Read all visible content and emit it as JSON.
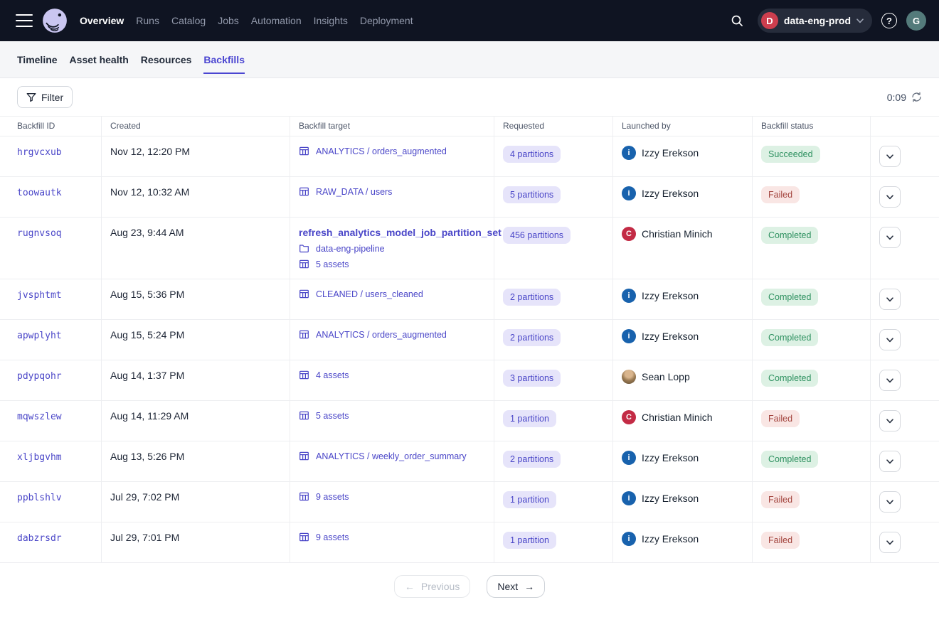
{
  "topnav": {
    "brand": "Dagster",
    "items": [
      {
        "label": "Overview",
        "active": true
      },
      {
        "label": "Runs",
        "active": false
      },
      {
        "label": "Catalog",
        "active": false
      },
      {
        "label": "Jobs",
        "active": false
      },
      {
        "label": "Automation",
        "active": false
      },
      {
        "label": "Insights",
        "active": false
      },
      {
        "label": "Deployment",
        "active": false
      }
    ],
    "deployment": {
      "initial": "D",
      "name": "data-eng-prod"
    },
    "help_glyph": "?",
    "avatar_initial": "G"
  },
  "tabs": [
    {
      "label": "Timeline",
      "active": false
    },
    {
      "label": "Asset health",
      "active": false
    },
    {
      "label": "Resources",
      "active": false
    },
    {
      "label": "Backfills",
      "active": true
    }
  ],
  "toolbar": {
    "filter_label": "Filter",
    "refresh_countdown": "0:09"
  },
  "table": {
    "columns": [
      "Backfill ID",
      "Created",
      "Backfill target",
      "Requested",
      "Launched by",
      "Backfill status",
      ""
    ],
    "rows": [
      {
        "id": "hrgvcxub",
        "created": "Nov 12, 12:20 PM",
        "target": [
          {
            "icon": "grid",
            "text": "ANALYTICS / orders_augmented",
            "bold": false
          }
        ],
        "requested": "4 partitions",
        "launched_by": {
          "name": "Izzy Erekson",
          "avatar": {
            "kind": "letter",
            "letter": "i",
            "color": "#1862ad"
          }
        },
        "status": {
          "label": "Succeeded",
          "kind": "success"
        }
      },
      {
        "id": "toowautk",
        "created": "Nov 12, 10:32 AM",
        "target": [
          {
            "icon": "grid",
            "text": "RAW_DATA / users",
            "bold": false
          }
        ],
        "requested": "5 partitions",
        "launched_by": {
          "name": "Izzy Erekson",
          "avatar": {
            "kind": "letter",
            "letter": "i",
            "color": "#1862ad"
          }
        },
        "status": {
          "label": "Failed",
          "kind": "failed"
        }
      },
      {
        "id": "rugnvsoq",
        "created": "Aug 23, 9:44 AM",
        "target": [
          {
            "icon": "",
            "text": "refresh_analytics_model_job_partition_set",
            "bold": true
          },
          {
            "icon": "folder",
            "text": "data-eng-pipeline",
            "bold": false
          },
          {
            "icon": "grid",
            "text": "5 assets",
            "bold": false
          }
        ],
        "requested": "456 partitions",
        "launched_by": {
          "name": "Christian Minich",
          "avatar": {
            "kind": "letter",
            "letter": "C",
            "color": "#c32b45"
          }
        },
        "status": {
          "label": "Completed",
          "kind": "success"
        }
      },
      {
        "id": "jvsphtmt",
        "created": "Aug 15, 5:36 PM",
        "target": [
          {
            "icon": "grid",
            "text": "CLEANED / users_cleaned",
            "bold": false
          }
        ],
        "requested": "2 partitions",
        "launched_by": {
          "name": "Izzy Erekson",
          "avatar": {
            "kind": "letter",
            "letter": "i",
            "color": "#1862ad"
          }
        },
        "status": {
          "label": "Completed",
          "kind": "success"
        }
      },
      {
        "id": "apwplyht",
        "created": "Aug 15, 5:24 PM",
        "target": [
          {
            "icon": "grid",
            "text": "ANALYTICS / orders_augmented",
            "bold": false
          }
        ],
        "requested": "2 partitions",
        "launched_by": {
          "name": "Izzy Erekson",
          "avatar": {
            "kind": "letter",
            "letter": "i",
            "color": "#1862ad"
          }
        },
        "status": {
          "label": "Completed",
          "kind": "success"
        }
      },
      {
        "id": "pdypqohr",
        "created": "Aug 14, 1:37 PM",
        "target": [
          {
            "icon": "grid",
            "text": "4 assets",
            "bold": false
          }
        ],
        "requested": "3 partitions",
        "launched_by": {
          "name": "Sean Lopp",
          "avatar": {
            "kind": "photo"
          }
        },
        "status": {
          "label": "Completed",
          "kind": "success"
        }
      },
      {
        "id": "mqwszlew",
        "created": "Aug 14, 11:29 AM",
        "target": [
          {
            "icon": "grid",
            "text": "5 assets",
            "bold": false
          }
        ],
        "requested": "1 partition",
        "launched_by": {
          "name": "Christian Minich",
          "avatar": {
            "kind": "letter",
            "letter": "C",
            "color": "#c32b45"
          }
        },
        "status": {
          "label": "Failed",
          "kind": "failed"
        }
      },
      {
        "id": "xljbgvhm",
        "created": "Aug 13, 5:26 PM",
        "target": [
          {
            "icon": "grid",
            "text": "ANALYTICS / weekly_order_summary",
            "bold": false
          }
        ],
        "requested": "2 partitions",
        "launched_by": {
          "name": "Izzy Erekson",
          "avatar": {
            "kind": "letter",
            "letter": "i",
            "color": "#1862ad"
          }
        },
        "status": {
          "label": "Completed",
          "kind": "success"
        }
      },
      {
        "id": "ppblshlv",
        "created": "Jul 29, 7:02 PM",
        "target": [
          {
            "icon": "grid",
            "text": "9 assets",
            "bold": false
          }
        ],
        "requested": "1 partition",
        "launched_by": {
          "name": "Izzy Erekson",
          "avatar": {
            "kind": "letter",
            "letter": "i",
            "color": "#1862ad"
          }
        },
        "status": {
          "label": "Failed",
          "kind": "failed"
        }
      },
      {
        "id": "dabzrsdr",
        "created": "Jul 29, 7:01 PM",
        "target": [
          {
            "icon": "grid",
            "text": "9 assets",
            "bold": false
          }
        ],
        "requested": "1 partition",
        "launched_by": {
          "name": "Izzy Erekson",
          "avatar": {
            "kind": "letter",
            "letter": "i",
            "color": "#1862ad"
          }
        },
        "status": {
          "label": "Failed",
          "kind": "failed"
        }
      }
    ]
  },
  "pagination": {
    "previous_label": "Previous",
    "next_label": "Next"
  },
  "icons": {
    "arrow_left": "←",
    "arrow_right": "→"
  },
  "colors": {
    "nav_bg": "#0f1422",
    "accent_indigo": "#4a45d1",
    "link_indigo": "#4a46c8",
    "partition_badge_bg": "#e6e4fa",
    "success_badge_bg": "#ddf1e4",
    "success_badge_text": "#2e9160",
    "failed_badge_bg": "#f9e6e4",
    "failed_badge_text": "#a3453e",
    "deployment_badge": "#cd3e4e",
    "avatar_izzy": "#1862ad",
    "avatar_christian": "#c32b45",
    "avatar_user": "#547b7b"
  }
}
